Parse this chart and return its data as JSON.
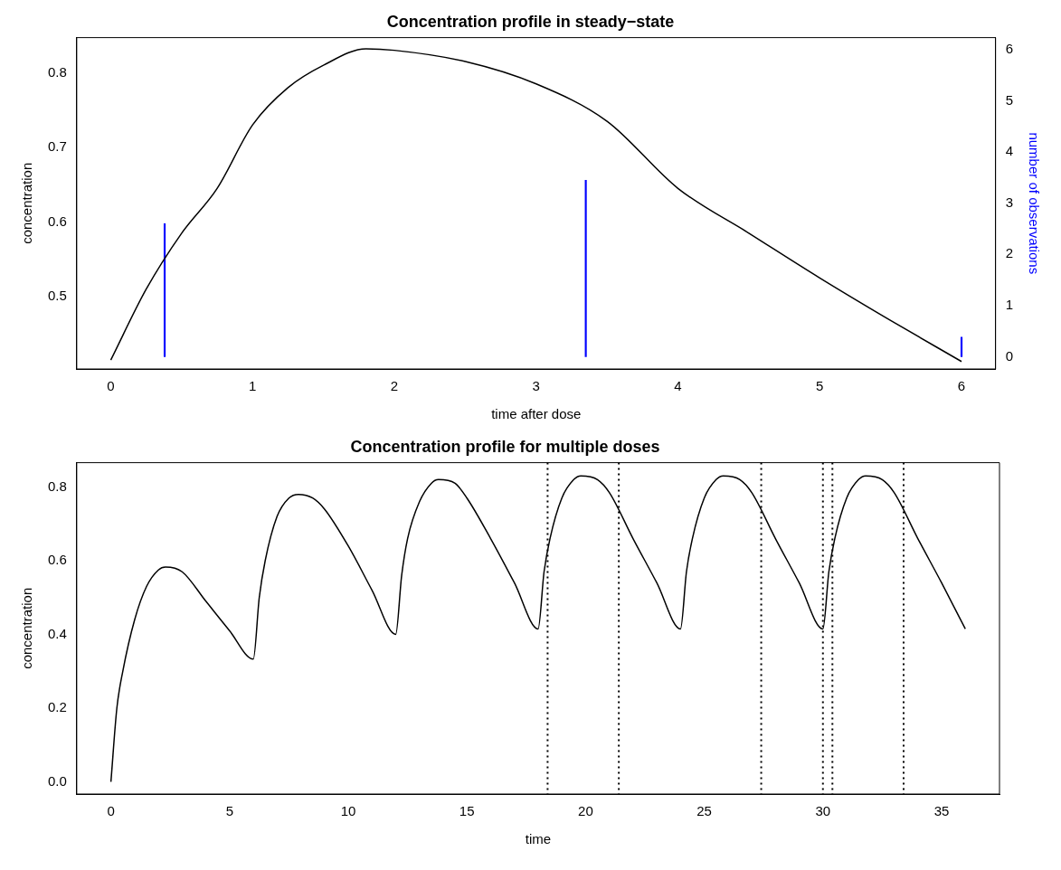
{
  "chart_data": [
    {
      "type": "line",
      "title": "Concentration profile in steady−state",
      "xlabel": "time after dose",
      "ylabel": "concentration",
      "y2label": "number of observations",
      "xlim": [
        -0.24,
        6.24
      ],
      "xticks": [
        0,
        1,
        2,
        3,
        4,
        5,
        6
      ],
      "ylim": [
        0.403,
        0.847
      ],
      "yticks": [
        0.5,
        0.6,
        0.7,
        0.8
      ],
      "y2lim": [
        -0.24,
        6.24
      ],
      "y2ticks": [
        0,
        1,
        2,
        3,
        4,
        5,
        6
      ],
      "grid": false,
      "legend": false,
      "marker": "none",
      "line_style": "solid",
      "series": [
        {
          "color": "#000000",
          "x": [
            0,
            0.25,
            0.5,
            0.75,
            1,
            1.25,
            1.5,
            1.8,
            2,
            2.5,
            3,
            3.5,
            4,
            4.5,
            5,
            5.5,
            6
          ],
          "values": [
            0.415,
            0.51,
            0.585,
            0.645,
            0.73,
            0.78,
            0.81,
            0.832,
            0.83,
            0.815,
            0.785,
            0.735,
            0.645,
            0.585,
            0.525,
            0.468,
            0.413
          ]
        },
        {
          "type": "bar",
          "axis": "y2",
          "color": "#0000ff",
          "x": [
            0.38,
            3.35,
            6
          ],
          "values": [
            2.6,
            3.45,
            0.38
          ]
        }
      ]
    },
    {
      "type": "line",
      "title": "Concentration profile for multiple doses",
      "xlabel": "time",
      "ylabel": "concentration",
      "xlim": [
        -1.44,
        37.44
      ],
      "xticks": [
        0,
        5,
        10,
        15,
        20,
        25,
        30,
        35
      ],
      "ylim": [
        -0.033,
        0.866
      ],
      "yticks": [
        {
          "value": 0,
          "label": "0.0"
        },
        0.2,
        0.4,
        0.6,
        0.8
      ],
      "grid": false,
      "legend": false,
      "marker": "none",
      "line_style": "solid",
      "ref_lines": [
        {
          "axis": "x",
          "value": 18.4,
          "color": "#000000",
          "line_style": "dotted"
        },
        {
          "axis": "x",
          "value": 21.4,
          "color": "#000000",
          "line_style": "dotted"
        },
        {
          "axis": "x",
          "value": 27.4,
          "color": "#000000",
          "line_style": "dotted"
        },
        {
          "axis": "x",
          "value": 30.0,
          "color": "#000000",
          "line_style": "dotted"
        },
        {
          "axis": "x",
          "value": 30.4,
          "color": "#000000",
          "line_style": "dotted"
        },
        {
          "axis": "x",
          "value": 33.4,
          "color": "#000000",
          "line_style": "dotted"
        }
      ],
      "series": [
        {
          "color": "#000000",
          "x": [
            0,
            0.25,
            0.5,
            1,
            1.5,
            2,
            2.3,
            3,
            4,
            5,
            6,
            6.25,
            6.5,
            7,
            7.5,
            7.9,
            8.5,
            9,
            10,
            11,
            12,
            12.25,
            12.5,
            13,
            13.5,
            13.8,
            14.5,
            15,
            16,
            17,
            18,
            18.25,
            18.5,
            19,
            19.5,
            19.8,
            20.5,
            21,
            22,
            23,
            24,
            24.25,
            24.5,
            25,
            25.5,
            25.8,
            26.5,
            27,
            28,
            29,
            30,
            30.25,
            30.5,
            31,
            31.5,
            31.8,
            32.5,
            33,
            34,
            35,
            36
          ],
          "values": [
            0,
            0.2,
            0.3,
            0.44,
            0.53,
            0.575,
            0.583,
            0.57,
            0.49,
            0.41,
            0.333,
            0.5,
            0.6,
            0.72,
            0.77,
            0.78,
            0.77,
            0.74,
            0.64,
            0.52,
            0.4,
            0.56,
            0.66,
            0.76,
            0.81,
            0.82,
            0.81,
            0.77,
            0.66,
            0.54,
            0.415,
            0.57,
            0.66,
            0.77,
            0.82,
            0.83,
            0.82,
            0.785,
            0.66,
            0.54,
            0.415,
            0.57,
            0.66,
            0.77,
            0.82,
            0.83,
            0.82,
            0.785,
            0.66,
            0.54,
            0.415,
            0.57,
            0.66,
            0.77,
            0.82,
            0.83,
            0.82,
            0.785,
            0.66,
            0.54,
            0.415
          ]
        }
      ]
    }
  ]
}
